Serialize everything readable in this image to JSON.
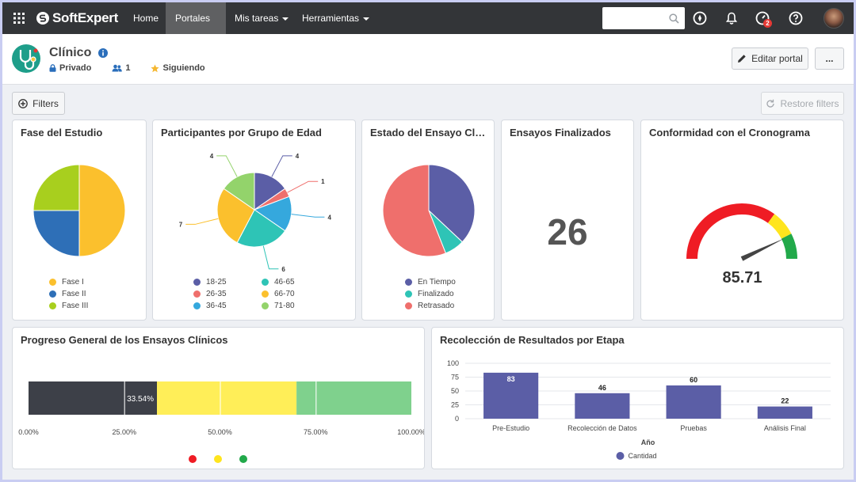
{
  "nav": {
    "logo": "SoftExpert",
    "items": [
      {
        "label": "Home",
        "caret": false,
        "active": false
      },
      {
        "label": "Portales",
        "caret": true,
        "active": true
      },
      {
        "label": "Mis tareas",
        "caret": true,
        "active": false
      },
      {
        "label": "Herramientas",
        "caret": true,
        "active": false
      }
    ],
    "search_placeholder": "",
    "timer_badge": "2"
  },
  "header": {
    "title": "Clínico",
    "privacy": "Privado",
    "members": "1",
    "following": "Siguiendo",
    "edit_button": "Editar portal",
    "more_button": "..."
  },
  "toolbar": {
    "filters_button": "Filters",
    "restore_button": "Restore filters"
  },
  "cards": {
    "fase": {
      "title": "Fase del Estudio",
      "chart_data": {
        "type": "pie",
        "labels": [
          "Fase I",
          "Fase II",
          "Fase III"
        ],
        "values": [
          50,
          25,
          25
        ],
        "colors": [
          "#fbc02d",
          "#2e6fb7",
          "#a8cf1e"
        ]
      }
    },
    "participantes": {
      "title": "Participantes por Grupo de Edad",
      "chart_data": {
        "type": "pie",
        "labels": [
          "18-25",
          "26-35",
          "36-45",
          "46-65",
          "66-70",
          "71-80"
        ],
        "values": [
          4,
          1,
          4,
          6,
          7,
          4
        ],
        "colors": [
          "#5b5ea6",
          "#ef6f6c",
          "#35a8dd",
          "#2ec4b6",
          "#fbc02d",
          "#93d36b"
        ]
      }
    },
    "estado": {
      "title": "Estado del Ensayo Clínico",
      "chart_data": {
        "type": "pie",
        "labels": [
          "En Tiempo",
          "Finalizado",
          "Retrasado"
        ],
        "values": [
          37,
          7,
          56
        ],
        "colors": [
          "#5b5ea6",
          "#2ec4b6",
          "#ef6f6c"
        ]
      }
    },
    "finalizados": {
      "title": "Ensayos Finalizados",
      "value": "26"
    },
    "conformidad": {
      "title": "Conformidad con el Cronograma",
      "value": "85.71",
      "chart_data": {
        "type": "gauge",
        "min": 0,
        "max": 100,
        "value": 85.71,
        "bands": [
          {
            "from": 0,
            "to": 70,
            "color": "#ef1c24"
          },
          {
            "from": 70,
            "to": 85,
            "color": "#ffe51e"
          },
          {
            "from": 85,
            "to": 100,
            "color": "#22a94a"
          }
        ]
      }
    },
    "progreso": {
      "title": "Progreso General de los Ensayos Clínicos",
      "bar_label": "33.54%",
      "chart_data": {
        "type": "bar",
        "orientation": "horizontal-stacked",
        "segments": [
          {
            "from": 0,
            "to": 33.54,
            "color": "#3d4048"
          },
          {
            "from": 33.54,
            "to": 70,
            "color": "#ffee58"
          },
          {
            "from": 70,
            "to": 100,
            "color": "#7fd18d"
          }
        ],
        "ticks": [
          "0.00%",
          "25.00%",
          "50.00%",
          "75.00%",
          "100.00%"
        ],
        "legend_colors": [
          "#ef1c24",
          "#ffe51e",
          "#22a94a"
        ]
      }
    },
    "recoleccion": {
      "title": "Recolección de Resultados por Etapa",
      "chart_data": {
        "type": "bar",
        "categories": [
          "Pre-Estudio",
          "Recolección de Datos",
          "Pruebas",
          "Análisis Final"
        ],
        "series": [
          {
            "name": "Cantidad",
            "values": [
              83,
              46,
              60,
              22
            ],
            "color": "#5b5ea6"
          }
        ],
        "xlabel": "Año",
        "ylim": [
          0,
          100
        ],
        "yticks": [
          "0",
          "25",
          "50",
          "75",
          "100"
        ]
      }
    }
  }
}
